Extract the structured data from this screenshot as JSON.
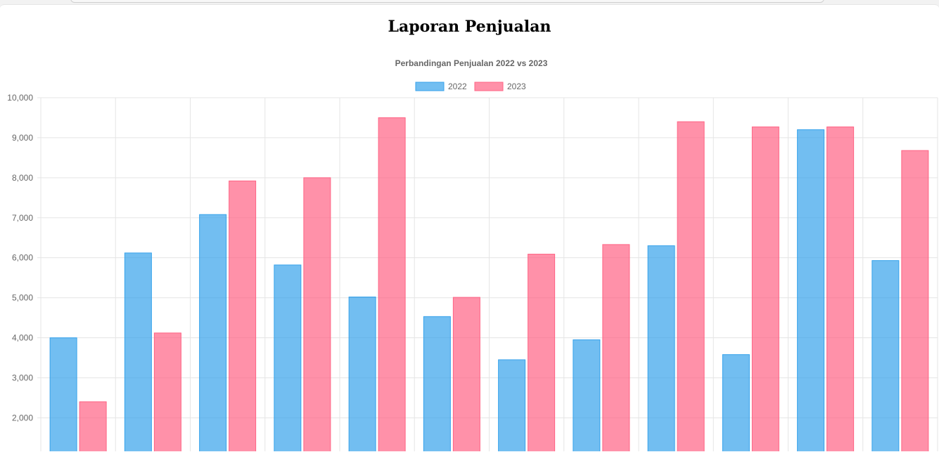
{
  "page": {
    "title": "Laporan Penjualan"
  },
  "chart_data": {
    "type": "bar",
    "title": "Perbandingan Penjualan 2022 vs 2023",
    "legend_position": "top",
    "grid": true,
    "ylim": [
      1000,
      10000
    ],
    "ytick_step": 1000,
    "yticks_visible": [
      "10,000",
      "9,000",
      "8,000",
      "7,000",
      "6,000",
      "5,000",
      "4,000",
      "3,000",
      "2,000"
    ],
    "categories": [
      "",
      "",
      "",
      "",
      "",
      "",
      "",
      "",
      "",
      "",
      "",
      ""
    ],
    "series": [
      {
        "name": "2022",
        "fill": "#36a2eb",
        "values": [
          4000,
          6120,
          7080,
          5820,
          5020,
          4530,
          3450,
          3950,
          6300,
          3580,
          9200,
          5930
        ]
      },
      {
        "name": "2023",
        "fill": "#ff6384",
        "values": [
          2400,
          4120,
          7920,
          8000,
          9500,
          5010,
          6090,
          6330,
          9400,
          9270,
          9270,
          8680
        ]
      }
    ]
  }
}
